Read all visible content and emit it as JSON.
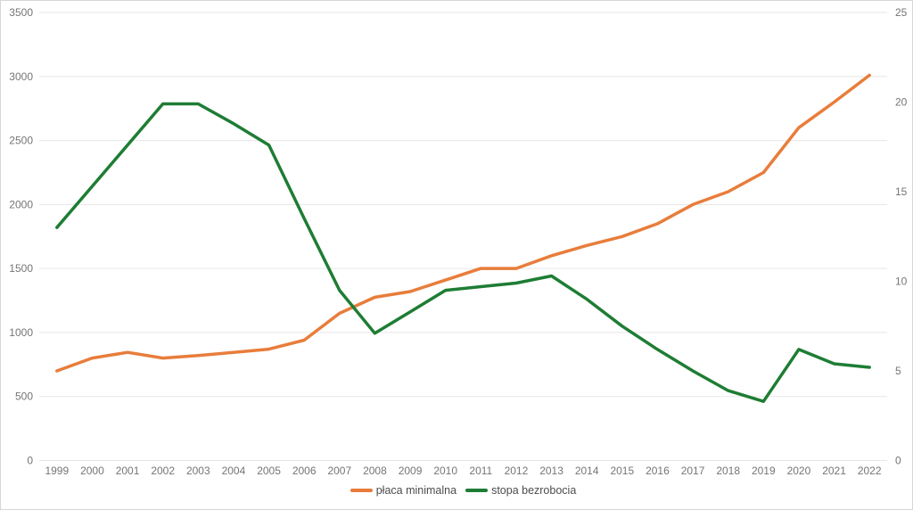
{
  "chart": {
    "background": "#ffffff",
    "border_color": "#d6d6d6",
    "grid_color": "#e7e7e7",
    "axis_label_color": "#757575",
    "legend_text_color": "#4c4c4c"
  },
  "chart_data": {
    "type": "line",
    "title": "",
    "xlabel": "",
    "ylabel_left": "",
    "ylabel_right": "",
    "grid": true,
    "legend_position": "bottom",
    "years": [
      1999,
      2000,
      2001,
      2002,
      2003,
      2004,
      2005,
      2006,
      2007,
      2008,
      2009,
      2010,
      2011,
      2012,
      2013,
      2014,
      2015,
      2016,
      2017,
      2018,
      2019,
      2020,
      2021,
      2022
    ],
    "series": [
      {
        "name": "płaca minimalna",
        "slug": "placa-minimalna",
        "color": "#E87D3B",
        "axis": "left",
        "values": [
          700,
          800,
          845,
          800,
          820,
          845,
          870,
          940,
          1150,
          1275,
          1320,
          1410,
          1500,
          1500,
          1600,
          1680,
          1750,
          1850,
          2000,
          2100,
          2250,
          2600,
          2800,
          3010
        ]
      },
      {
        "name": "stopa bezrobocia",
        "slug": "stopa-bezrobocia",
        "color": "#1E7D34",
        "axis": "right",
        "values": [
          13.0,
          15.3,
          17.6,
          19.9,
          19.9,
          18.8,
          17.6,
          13.5,
          9.5,
          7.1,
          8.3,
          9.5,
          9.7,
          9.9,
          10.3,
          9.0,
          7.5,
          6.2,
          5.0,
          3.9,
          3.3,
          6.2,
          5.4,
          5.2
        ]
      }
    ],
    "left_axis": {
      "min": 0,
      "max": 3500,
      "step": 500,
      "ticks": [
        0,
        500,
        1000,
        1500,
        2000,
        2500,
        3000,
        3500
      ]
    },
    "right_axis": {
      "min": 0,
      "max": 25,
      "step": 5,
      "ticks": [
        0,
        5,
        10,
        15,
        20,
        25
      ]
    }
  }
}
